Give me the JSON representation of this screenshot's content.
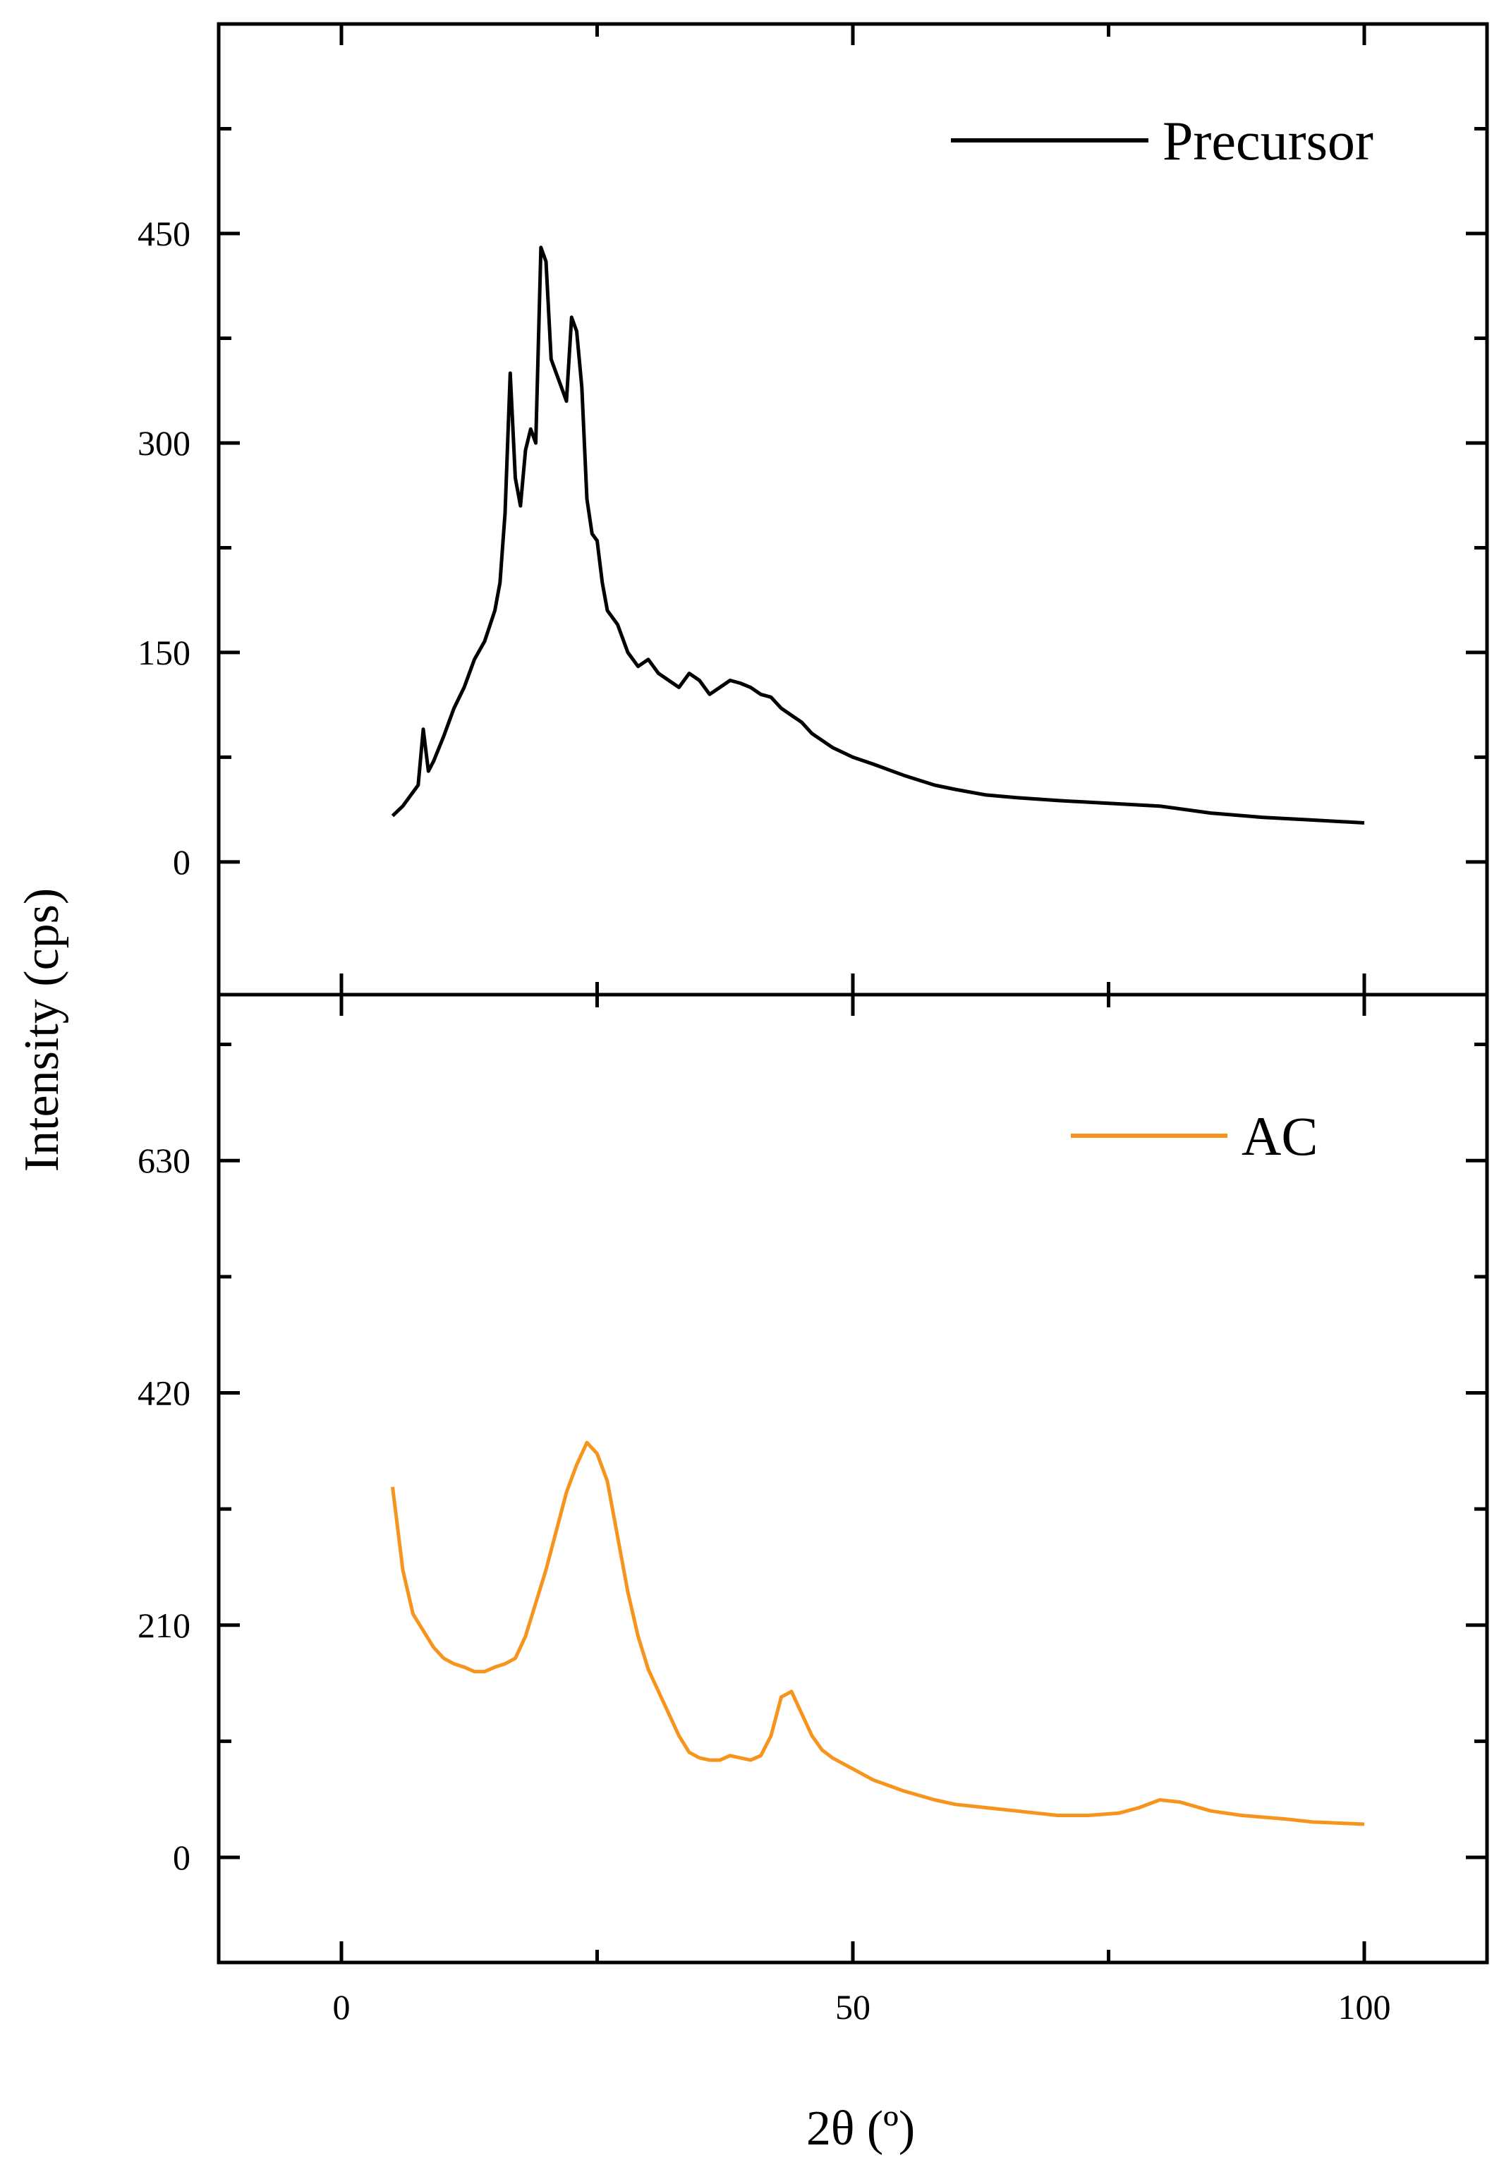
{
  "chart_data": [
    {
      "type": "line",
      "ylabel": "Intensity (cps)",
      "xlabel": "2θ (º)",
      "xlim": [
        -12,
        112
      ],
      "ylim": [
        -105,
        575
      ],
      "xticks": [
        0,
        50,
        100
      ],
      "xtick_labels": [
        "0",
        "50",
        "100"
      ],
      "yticks": [
        0,
        150,
        300,
        450
      ],
      "ytick_labels": [
        "0",
        "150",
        "300",
        "450"
      ],
      "grid": false,
      "legend": "top-right",
      "series": [
        {
          "name": "Precursor",
          "color": "#000000",
          "x": [
            5,
            6,
            7,
            7.5,
            8,
            8.5,
            9,
            10,
            11,
            12,
            13,
            14,
            15,
            15.5,
            16,
            16.5,
            17,
            17.5,
            18,
            18.5,
            19,
            19.5,
            20,
            20.5,
            21,
            21.5,
            22,
            22.5,
            23,
            23.5,
            24,
            24.5,
            25,
            25.5,
            26,
            27,
            28,
            29,
            30,
            31,
            32,
            33,
            34,
            35,
            36,
            37,
            38,
            39,
            40,
            41,
            42,
            43,
            44,
            45,
            46,
            48,
            50,
            52,
            55,
            58,
            60,
            63,
            66,
            70,
            75,
            80,
            85,
            90,
            95,
            100
          ],
          "y": [
            33,
            40,
            50,
            55,
            95,
            65,
            72,
            90,
            110,
            125,
            145,
            158,
            180,
            200,
            250,
            350,
            275,
            255,
            295,
            310,
            300,
            440,
            430,
            360,
            350,
            340,
            330,
            390,
            380,
            340,
            260,
            235,
            230,
            200,
            180,
            170,
            150,
            140,
            145,
            135,
            130,
            125,
            135,
            130,
            120,
            125,
            130,
            128,
            125,
            120,
            118,
            110,
            105,
            100,
            92,
            82,
            75,
            70,
            62,
            55,
            52,
            48,
            46,
            44,
            42,
            40,
            35,
            32,
            30,
            28
          ]
        },
        {
          "name": "AC",
          "color": "#F7941D",
          "x": [
            5,
            6,
            7,
            8,
            9,
            10,
            11,
            12,
            13,
            14,
            15,
            16,
            17,
            18,
            19,
            20,
            21,
            22,
            23,
            24,
            25,
            26,
            27,
            28,
            29,
            30,
            31,
            32,
            33,
            34,
            35,
            36,
            37,
            38,
            39,
            40,
            41,
            42,
            43,
            44,
            45,
            46,
            47,
            48,
            50,
            52,
            55,
            58,
            60,
            63,
            66,
            70,
            73,
            76,
            78,
            80,
            82,
            85,
            88,
            92,
            95,
            100
          ],
          "y": [
            335,
            260,
            220,
            205,
            190,
            180,
            175,
            172,
            168,
            168,
            172,
            175,
            180,
            200,
            230,
            260,
            295,
            330,
            355,
            375,
            365,
            340,
            290,
            240,
            200,
            170,
            150,
            130,
            110,
            95,
            90,
            88,
            88,
            92,
            90,
            88,
            92,
            110,
            145,
            150,
            130,
            110,
            97,
            90,
            80,
            70,
            60,
            52,
            48,
            45,
            42,
            38,
            38,
            40,
            45,
            52,
            50,
            42,
            38,
            35,
            32,
            30
          ]
        }
      ]
    }
  ],
  "panels": [
    {
      "series_index": 0,
      "ylim": [
        -95,
        600
      ],
      "yticks": [
        0,
        150,
        300,
        450
      ],
      "ytick_labels": [
        "0",
        "150",
        "300",
        "450"
      ],
      "legend_label": "Precursor",
      "color": "#000000"
    },
    {
      "series_index": 1,
      "ylim": [
        -95,
        780
      ],
      "yticks": [
        0,
        210,
        420,
        630
      ],
      "ytick_labels": [
        "0",
        "210",
        "420",
        "630"
      ],
      "legend_label": "AC",
      "color": "#F7941D"
    }
  ],
  "axes": {
    "xlim": [
      -12,
      112
    ],
    "xticks": [
      0,
      50,
      100
    ],
    "xtick_labels": [
      "0",
      "50",
      "100"
    ],
    "xlabel": "2θ (º)",
    "ylabel": "Intensity (cps)"
  }
}
